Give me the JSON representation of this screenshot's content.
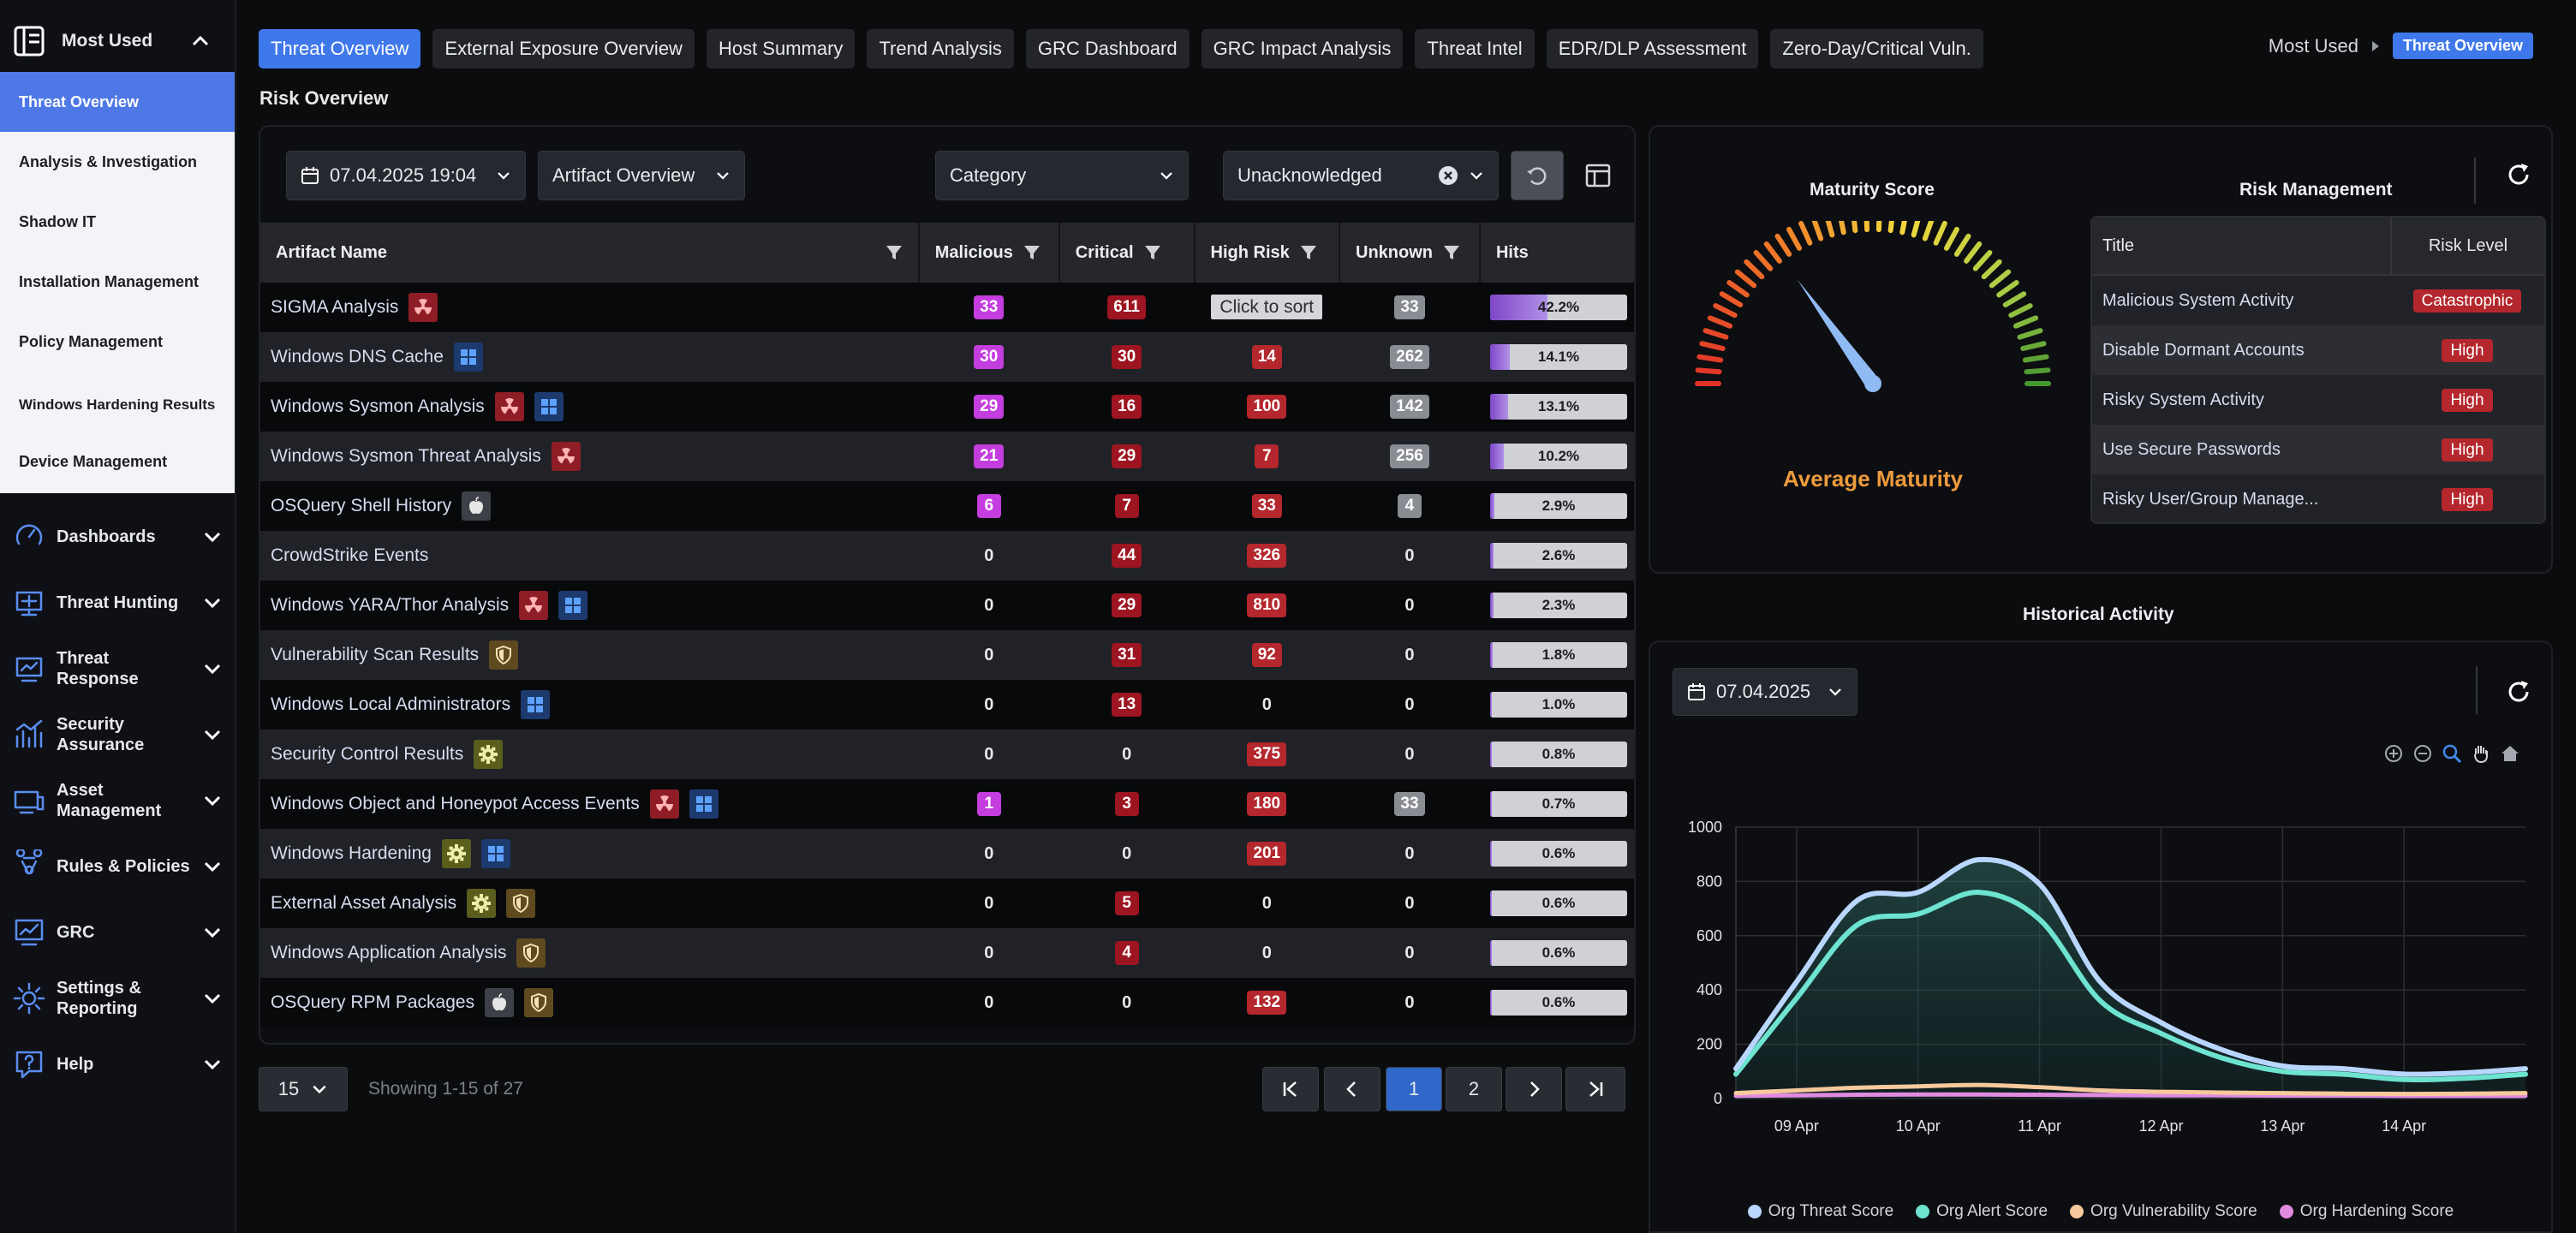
{
  "sidebar": {
    "top_label": "Most Used",
    "items": [
      {
        "label": "Threat Overview"
      },
      {
        "label": "Analysis & Investigation"
      },
      {
        "label": "Shadow IT"
      },
      {
        "label": "Installation Management"
      },
      {
        "label": "Policy Management"
      },
      {
        "label": "Windows Hardening Results"
      },
      {
        "label": "Device Management"
      }
    ],
    "nav": [
      {
        "label": "Dashboards",
        "icon": "dashboard-icon"
      },
      {
        "label": "Threat Hunting",
        "icon": "threat-hunting-icon"
      },
      {
        "label": "Threat Response",
        "icon": "threat-response-icon"
      },
      {
        "label": "Security Assurance",
        "icon": "security-assurance-icon"
      },
      {
        "label": "Asset Management",
        "icon": "asset-management-icon"
      },
      {
        "label": "Rules & Policies",
        "icon": "rules-policies-icon"
      },
      {
        "label": "GRC",
        "icon": "grc-icon"
      },
      {
        "label": "Settings & Reporting",
        "icon": "settings-gear-icon"
      },
      {
        "label": "Help",
        "icon": "help-icon"
      }
    ]
  },
  "tabs": [
    "Threat Overview",
    "External Exposure Overview",
    "Host Summary",
    "Trend Analysis",
    "GRC Dashboard",
    "GRC Impact Analysis",
    "Threat Intel",
    "EDR/DLP Assessment",
    "Zero-Day/Critical Vuln."
  ],
  "breadcrumb": {
    "parent": "Most Used",
    "current": "Threat Overview"
  },
  "section_title": "Risk Overview",
  "filters": {
    "date": "07.04.2025 19:04",
    "artifact": "Artifact Overview",
    "category": "Category",
    "ack": "Unacknowledged"
  },
  "table": {
    "headers": [
      "Artifact Name",
      "Malicious",
      "Critical",
      "High Risk",
      "Unknown",
      "Hits"
    ],
    "tooltip": "Click to sort",
    "rows": [
      {
        "name": "SIGMA Analysis",
        "icons": [
          "radiation"
        ],
        "malicious": "33",
        "critical": "611",
        "high": "",
        "unknown": "33",
        "hits": "42.2%",
        "hits_value": 42.2
      },
      {
        "name": "Windows DNS Cache",
        "icons": [
          "windows"
        ],
        "malicious": "30",
        "critical": "30",
        "high": "14",
        "unknown": "262",
        "hits": "14.1%",
        "hits_value": 14.1
      },
      {
        "name": "Windows Sysmon Analysis",
        "icons": [
          "radiation",
          "windows"
        ],
        "malicious": "29",
        "critical": "16",
        "high": "100",
        "unknown": "142",
        "hits": "13.1%",
        "hits_value": 13.1
      },
      {
        "name": "Windows Sysmon Threat Analysis",
        "icons": [
          "radiation"
        ],
        "malicious": "21",
        "critical": "29",
        "high": "7",
        "unknown": "256",
        "hits": "10.2%",
        "hits_value": 10.2
      },
      {
        "name": "OSQuery Shell History",
        "icons": [
          "apple"
        ],
        "malicious": "6",
        "critical": "7",
        "high": "33",
        "unknown": "4",
        "hits": "2.9%",
        "hits_value": 2.9
      },
      {
        "name": "CrowdStrike Events",
        "icons": [],
        "malicious": "0",
        "critical": "44",
        "high": "326",
        "unknown": "0",
        "hits": "2.6%",
        "hits_value": 2.6
      },
      {
        "name": "Windows YARA/Thor Analysis",
        "icons": [
          "radiation",
          "windows"
        ],
        "malicious": "0",
        "critical": "29",
        "high": "810",
        "unknown": "0",
        "hits": "2.3%",
        "hits_value": 2.3
      },
      {
        "name": "Vulnerability Scan Results",
        "icons": [
          "shield"
        ],
        "malicious": "0",
        "critical": "31",
        "high": "92",
        "unknown": "0",
        "hits": "1.8%",
        "hits_value": 1.8
      },
      {
        "name": "Windows Local Administrators",
        "icons": [
          "windows"
        ],
        "malicious": "0",
        "critical": "13",
        "high": "0",
        "unknown": "0",
        "hits": "1.0%",
        "hits_value": 1.0
      },
      {
        "name": "Security Control Results",
        "icons": [
          "gear"
        ],
        "malicious": "0",
        "critical": "0",
        "high": "375",
        "unknown": "0",
        "hits": "0.8%",
        "hits_value": 0.8
      },
      {
        "name": "Windows Object and Honeypot Access Events",
        "icons": [
          "radiation",
          "windows"
        ],
        "malicious": "1",
        "critical": "3",
        "high": "180",
        "unknown": "33",
        "hits": "0.7%",
        "hits_value": 0.7
      },
      {
        "name": "Windows Hardening",
        "icons": [
          "gear",
          "windows"
        ],
        "malicious": "0",
        "critical": "0",
        "high": "201",
        "unknown": "0",
        "hits": "0.6%",
        "hits_value": 0.6
      },
      {
        "name": "External Asset Analysis",
        "icons": [
          "gear",
          "shield"
        ],
        "malicious": "0",
        "critical": "5",
        "high": "0",
        "unknown": "0",
        "hits": "0.6%",
        "hits_value": 0.6
      },
      {
        "name": "Windows Application Analysis",
        "icons": [
          "shield"
        ],
        "malicious": "0",
        "critical": "4",
        "high": "0",
        "unknown": "0",
        "hits": "0.6%",
        "hits_value": 0.6
      },
      {
        "name": "OSQuery RPM Packages",
        "icons": [
          "apple",
          "shield"
        ],
        "malicious": "0",
        "critical": "0",
        "high": "132",
        "unknown": "0",
        "hits": "0.6%",
        "hits_value": 0.6
      }
    ]
  },
  "pagination": {
    "page_size": "15",
    "showing": "Showing 1-15 of 27",
    "pages": [
      "1",
      "2"
    ],
    "current": "1"
  },
  "maturity": {
    "title": "Maturity Score",
    "label": "Average Maturity",
    "needle_fraction": 0.3
  },
  "risk_mgmt": {
    "title": "Risk Management",
    "headers": [
      "Title",
      "Risk Level"
    ],
    "rows": [
      {
        "title": "Malicious System Activity",
        "level": "Catastrophic"
      },
      {
        "title": "Disable Dormant Accounts",
        "level": "High"
      },
      {
        "title": "Risky System Activity",
        "level": "High"
      },
      {
        "title": "Use Secure Passwords",
        "level": "High"
      },
      {
        "title": "Risky User/Group Manage...",
        "level": "High"
      }
    ]
  },
  "historical": {
    "title": "Historical Activity",
    "date": "07.04.2025"
  },
  "chart_data": {
    "type": "area",
    "title": "",
    "xlabel": "",
    "ylabel": "",
    "ylim": [
      0,
      1000
    ],
    "yticks": [
      0,
      200,
      400,
      600,
      800,
      1000
    ],
    "xticks": [
      "09 Apr",
      "10 Apr",
      "11 Apr",
      "12 Apr",
      "13 Apr",
      "14 Apr"
    ],
    "x": [
      8.5,
      9.0,
      9.5,
      10.0,
      10.5,
      11.0,
      11.5,
      12.0,
      12.5,
      13.0,
      13.5,
      14.0,
      14.5,
      15.0
    ],
    "legend_position": "bottom",
    "series": [
      {
        "name": "Org Threat Score",
        "color": "#b9d6ff",
        "values": [
          110,
          430,
          730,
          760,
          880,
          790,
          430,
          280,
          180,
          120,
          110,
          90,
          95,
          110
        ]
      },
      {
        "name": "Org Alert Score",
        "color": "#6de3d0",
        "values": [
          90,
          370,
          640,
          680,
          760,
          660,
          360,
          240,
          150,
          100,
          90,
          70,
          75,
          90
        ]
      },
      {
        "name": "Org Vulnerability Score",
        "color": "#f6c99c",
        "values": [
          20,
          30,
          40,
          45,
          50,
          42,
          30,
          25,
          22,
          20,
          18,
          17,
          18,
          20
        ]
      },
      {
        "name": "Org Hardening Score",
        "color": "#e08be0",
        "values": [
          10,
          12,
          14,
          15,
          15,
          14,
          13,
          12,
          12,
          11,
          11,
          10,
          10,
          10
        ]
      }
    ]
  }
}
